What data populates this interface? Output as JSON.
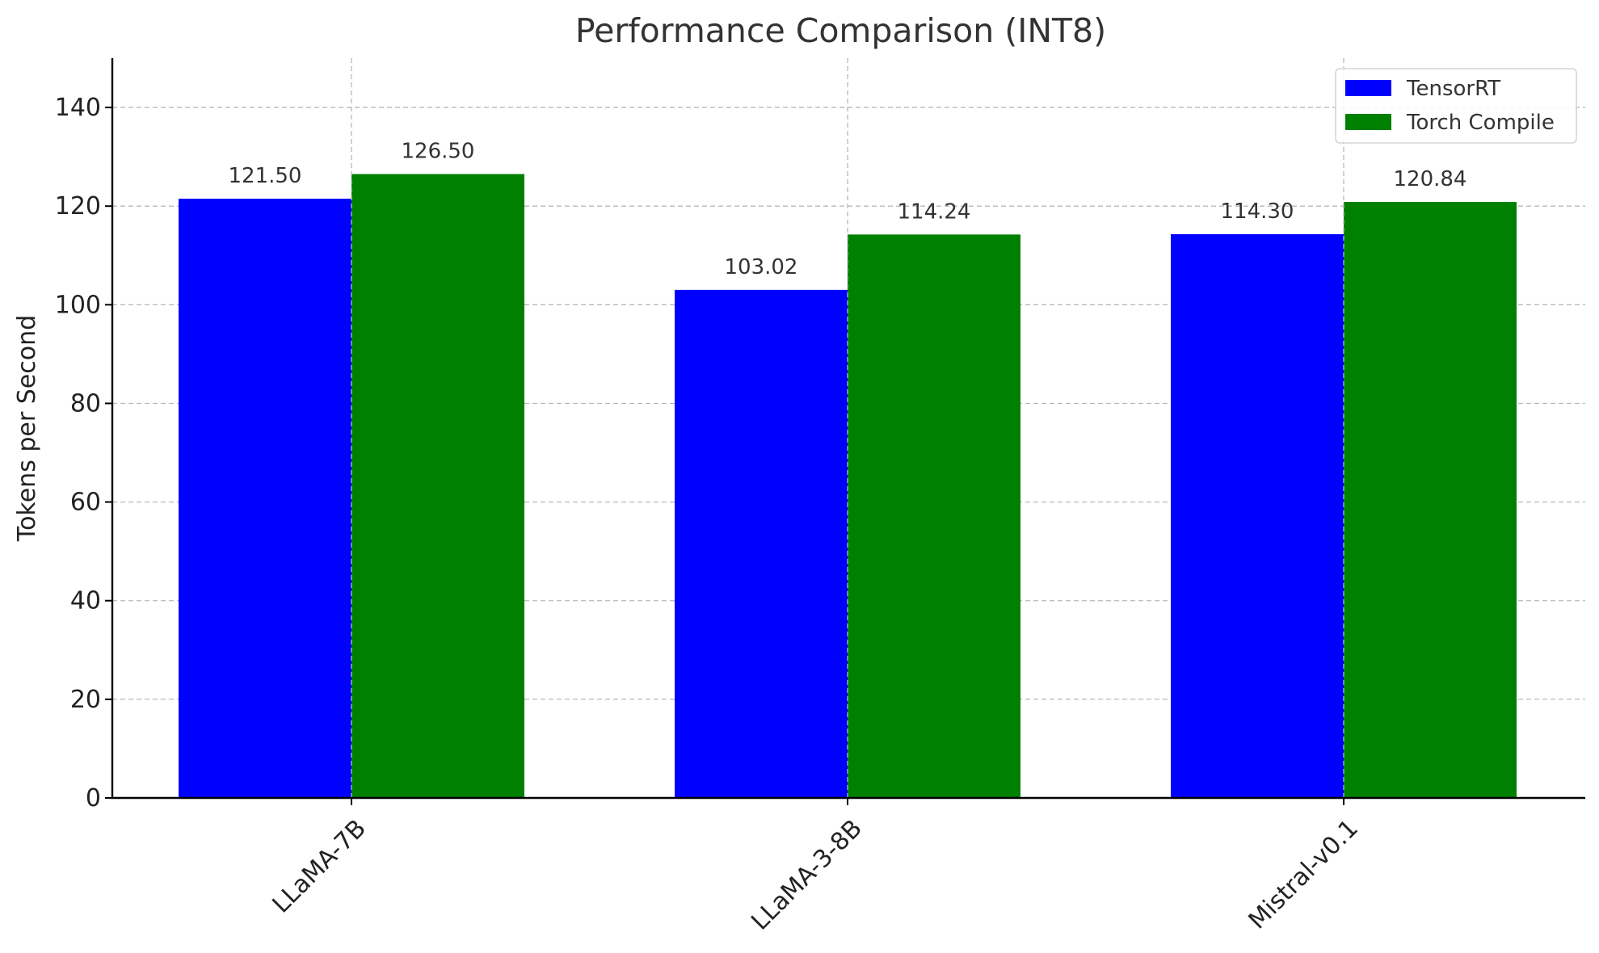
{
  "chart_data": {
    "type": "bar",
    "title": "Performance Comparison (INT8)",
    "xlabel": "",
    "ylabel": "Tokens per Second",
    "categories": [
      "LLaMA-7B",
      "LLaMA-3-8B",
      "Mistral-v0.1"
    ],
    "series": [
      {
        "name": "TensorRT",
        "values": [
          121.5,
          103.02,
          114.3
        ],
        "color": "#0000ff"
      },
      {
        "name": "Torch Compile",
        "values": [
          126.5,
          114.24,
          120.84
        ],
        "color": "#008000"
      }
    ],
    "value_labels": [
      [
        "121.50",
        "103.02",
        "114.30"
      ],
      [
        "126.50",
        "114.24",
        "120.84"
      ]
    ],
    "ylim": [
      0,
      150
    ],
    "yticks": [
      0,
      20,
      40,
      60,
      80,
      100,
      120,
      140
    ],
    "grid": true,
    "legend_position": "top-right"
  }
}
